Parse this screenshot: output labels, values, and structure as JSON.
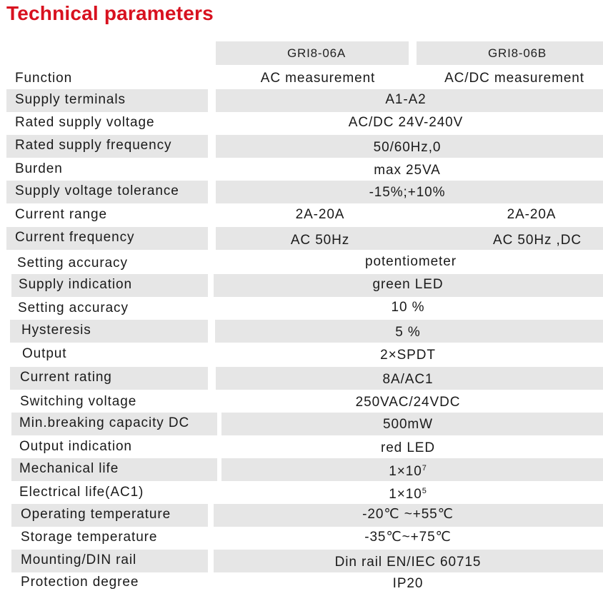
{
  "title": "Technical parameters",
  "models": [
    "GRI8-06A",
    "GRI8-06B"
  ],
  "rows": [
    {
      "label": "Function",
      "a": "AC measurement",
      "b": "AC/DC measurement"
    },
    {
      "label": "Supply terminals",
      "value": "A1-A2"
    },
    {
      "label": "Rated supply voltage",
      "value": "AC/DC 24V-240V"
    },
    {
      "label": "Rated supply frequency",
      "value": "50/60Hz,0"
    },
    {
      "label": "Burden",
      "value": "max 25VA"
    },
    {
      "label": "Supply voltage tolerance",
      "value": "-15%;+10%"
    },
    {
      "label": "Current range",
      "a": "2A-20A",
      "b": "2A-20A"
    },
    {
      "label": "Current frequency",
      "a": "AC 50Hz",
      "b": "AC 50Hz ,DC"
    },
    {
      "label": "Setting accuracy",
      "value": "potentiometer"
    },
    {
      "label": "Supply indication",
      "value": "green LED"
    },
    {
      "label": "Setting accuracy",
      "value": "10 %"
    },
    {
      "label": "Hysteresis",
      "value": "5 %"
    },
    {
      "label": "Output",
      "value": "2×SPDT"
    },
    {
      "label": "Current rating",
      "value": "8A/AC1"
    },
    {
      "label": "Switching voltage",
      "value": "250VAC/24VDC"
    },
    {
      "label": "Min.breaking capacity DC",
      "value": "500mW"
    },
    {
      "label": "Output indication",
      "value": "red LED"
    },
    {
      "label": "Mechanical life",
      "value": "1×10",
      "sup": "7"
    },
    {
      "label": "Electrical life(AC1)",
      "value": "1×10",
      "sup": "5"
    },
    {
      "label": "Operating temperature",
      "value": "-20℃ ~+55℃"
    },
    {
      "label": "Storage temperature",
      "value": "-35℃~+75℃"
    },
    {
      "label": "Mounting/DIN rail",
      "value": "Din rail EN/IEC 60715"
    },
    {
      "label": "Protection degree",
      "value": "IP20"
    }
  ]
}
